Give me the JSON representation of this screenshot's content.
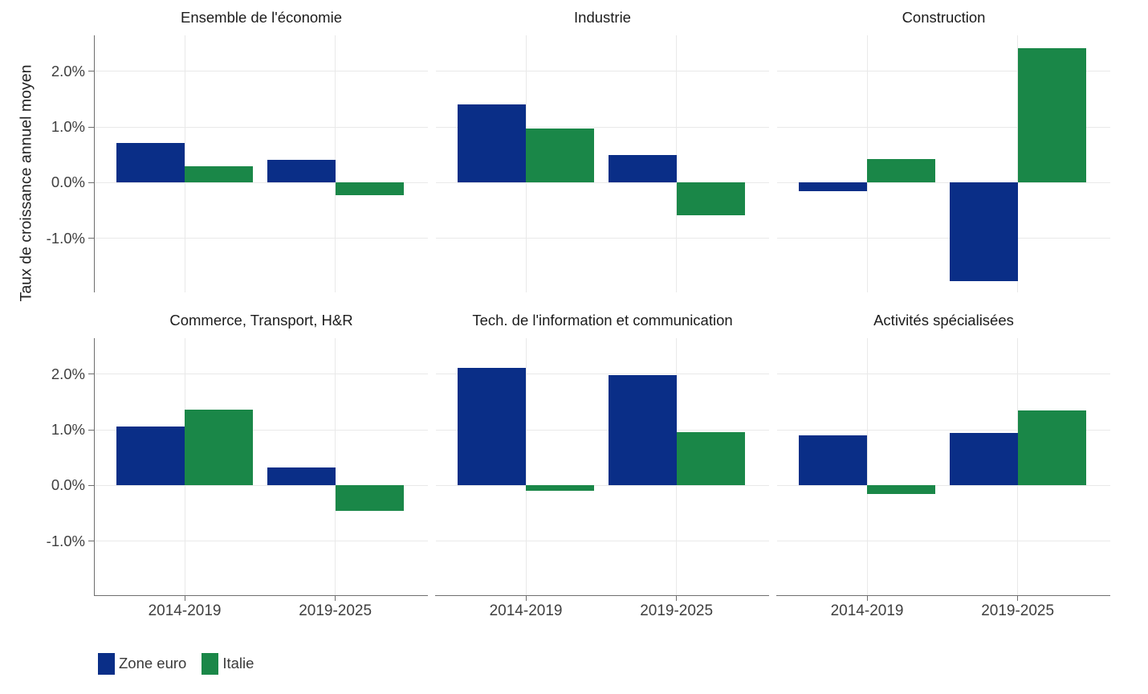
{
  "figure": {
    "background": "#ffffff"
  },
  "chart_data": {
    "type": "bar",
    "layout": "facets-2x3, dodged bars, shared axes",
    "ylabel": "Taux de croissance annuel moyen",
    "categories": [
      "2014-2019",
      "2019-2025"
    ],
    "y_tick_labels": [
      "2.0%",
      "1.0%",
      "0.0%",
      "-1.0%"
    ],
    "y_tick_values": [
      2.0,
      1.0,
      0.0,
      -1.0
    ],
    "ylim": [
      -1.97,
      2.647
    ],
    "grid": true,
    "legend": [
      "Zone euro",
      "Italie"
    ],
    "legend_position": "bottom-left",
    "series_colors": {
      "Zone euro": "#0A2E87",
      "Italie": "#1A8748"
    },
    "axis_color": "#6e6e6e",
    "gridline_color": "#e9e9e9",
    "panels": [
      {
        "title": "Ensemble de l'économie",
        "series": [
          {
            "name": "Zone euro",
            "values": [
              0.72,
              0.41
            ]
          },
          {
            "name": "Italie",
            "values": [
              0.3,
              -0.22
            ]
          }
        ]
      },
      {
        "title": "Industrie",
        "series": [
          {
            "name": "Zone euro",
            "values": [
              1.4,
              0.5
            ]
          },
          {
            "name": "Italie",
            "values": [
              0.97,
              -0.59
            ]
          }
        ]
      },
      {
        "title": "Construction",
        "series": [
          {
            "name": "Zone euro",
            "values": [
              -0.15,
              -1.77
            ]
          },
          {
            "name": "Italie",
            "values": [
              0.42,
              2.42
            ]
          }
        ]
      },
      {
        "title": "Commerce, Transport, H&R",
        "series": [
          {
            "name": "Zone euro",
            "values": [
              1.06,
              0.33
            ]
          },
          {
            "name": "Italie",
            "values": [
              1.36,
              -0.45
            ]
          }
        ]
      },
      {
        "title": "Tech. de l'information et communication",
        "series": [
          {
            "name": "Zone euro",
            "values": [
              2.11,
              1.99
            ]
          },
          {
            "name": "Italie",
            "values": [
              -0.1,
              0.96
            ]
          }
        ]
      },
      {
        "title": "Activités spécialisées",
        "series": [
          {
            "name": "Zone euro",
            "values": [
              0.9,
              0.95
            ]
          },
          {
            "name": "Italie",
            "values": [
              -0.15,
              1.35
            ]
          }
        ]
      }
    ]
  }
}
